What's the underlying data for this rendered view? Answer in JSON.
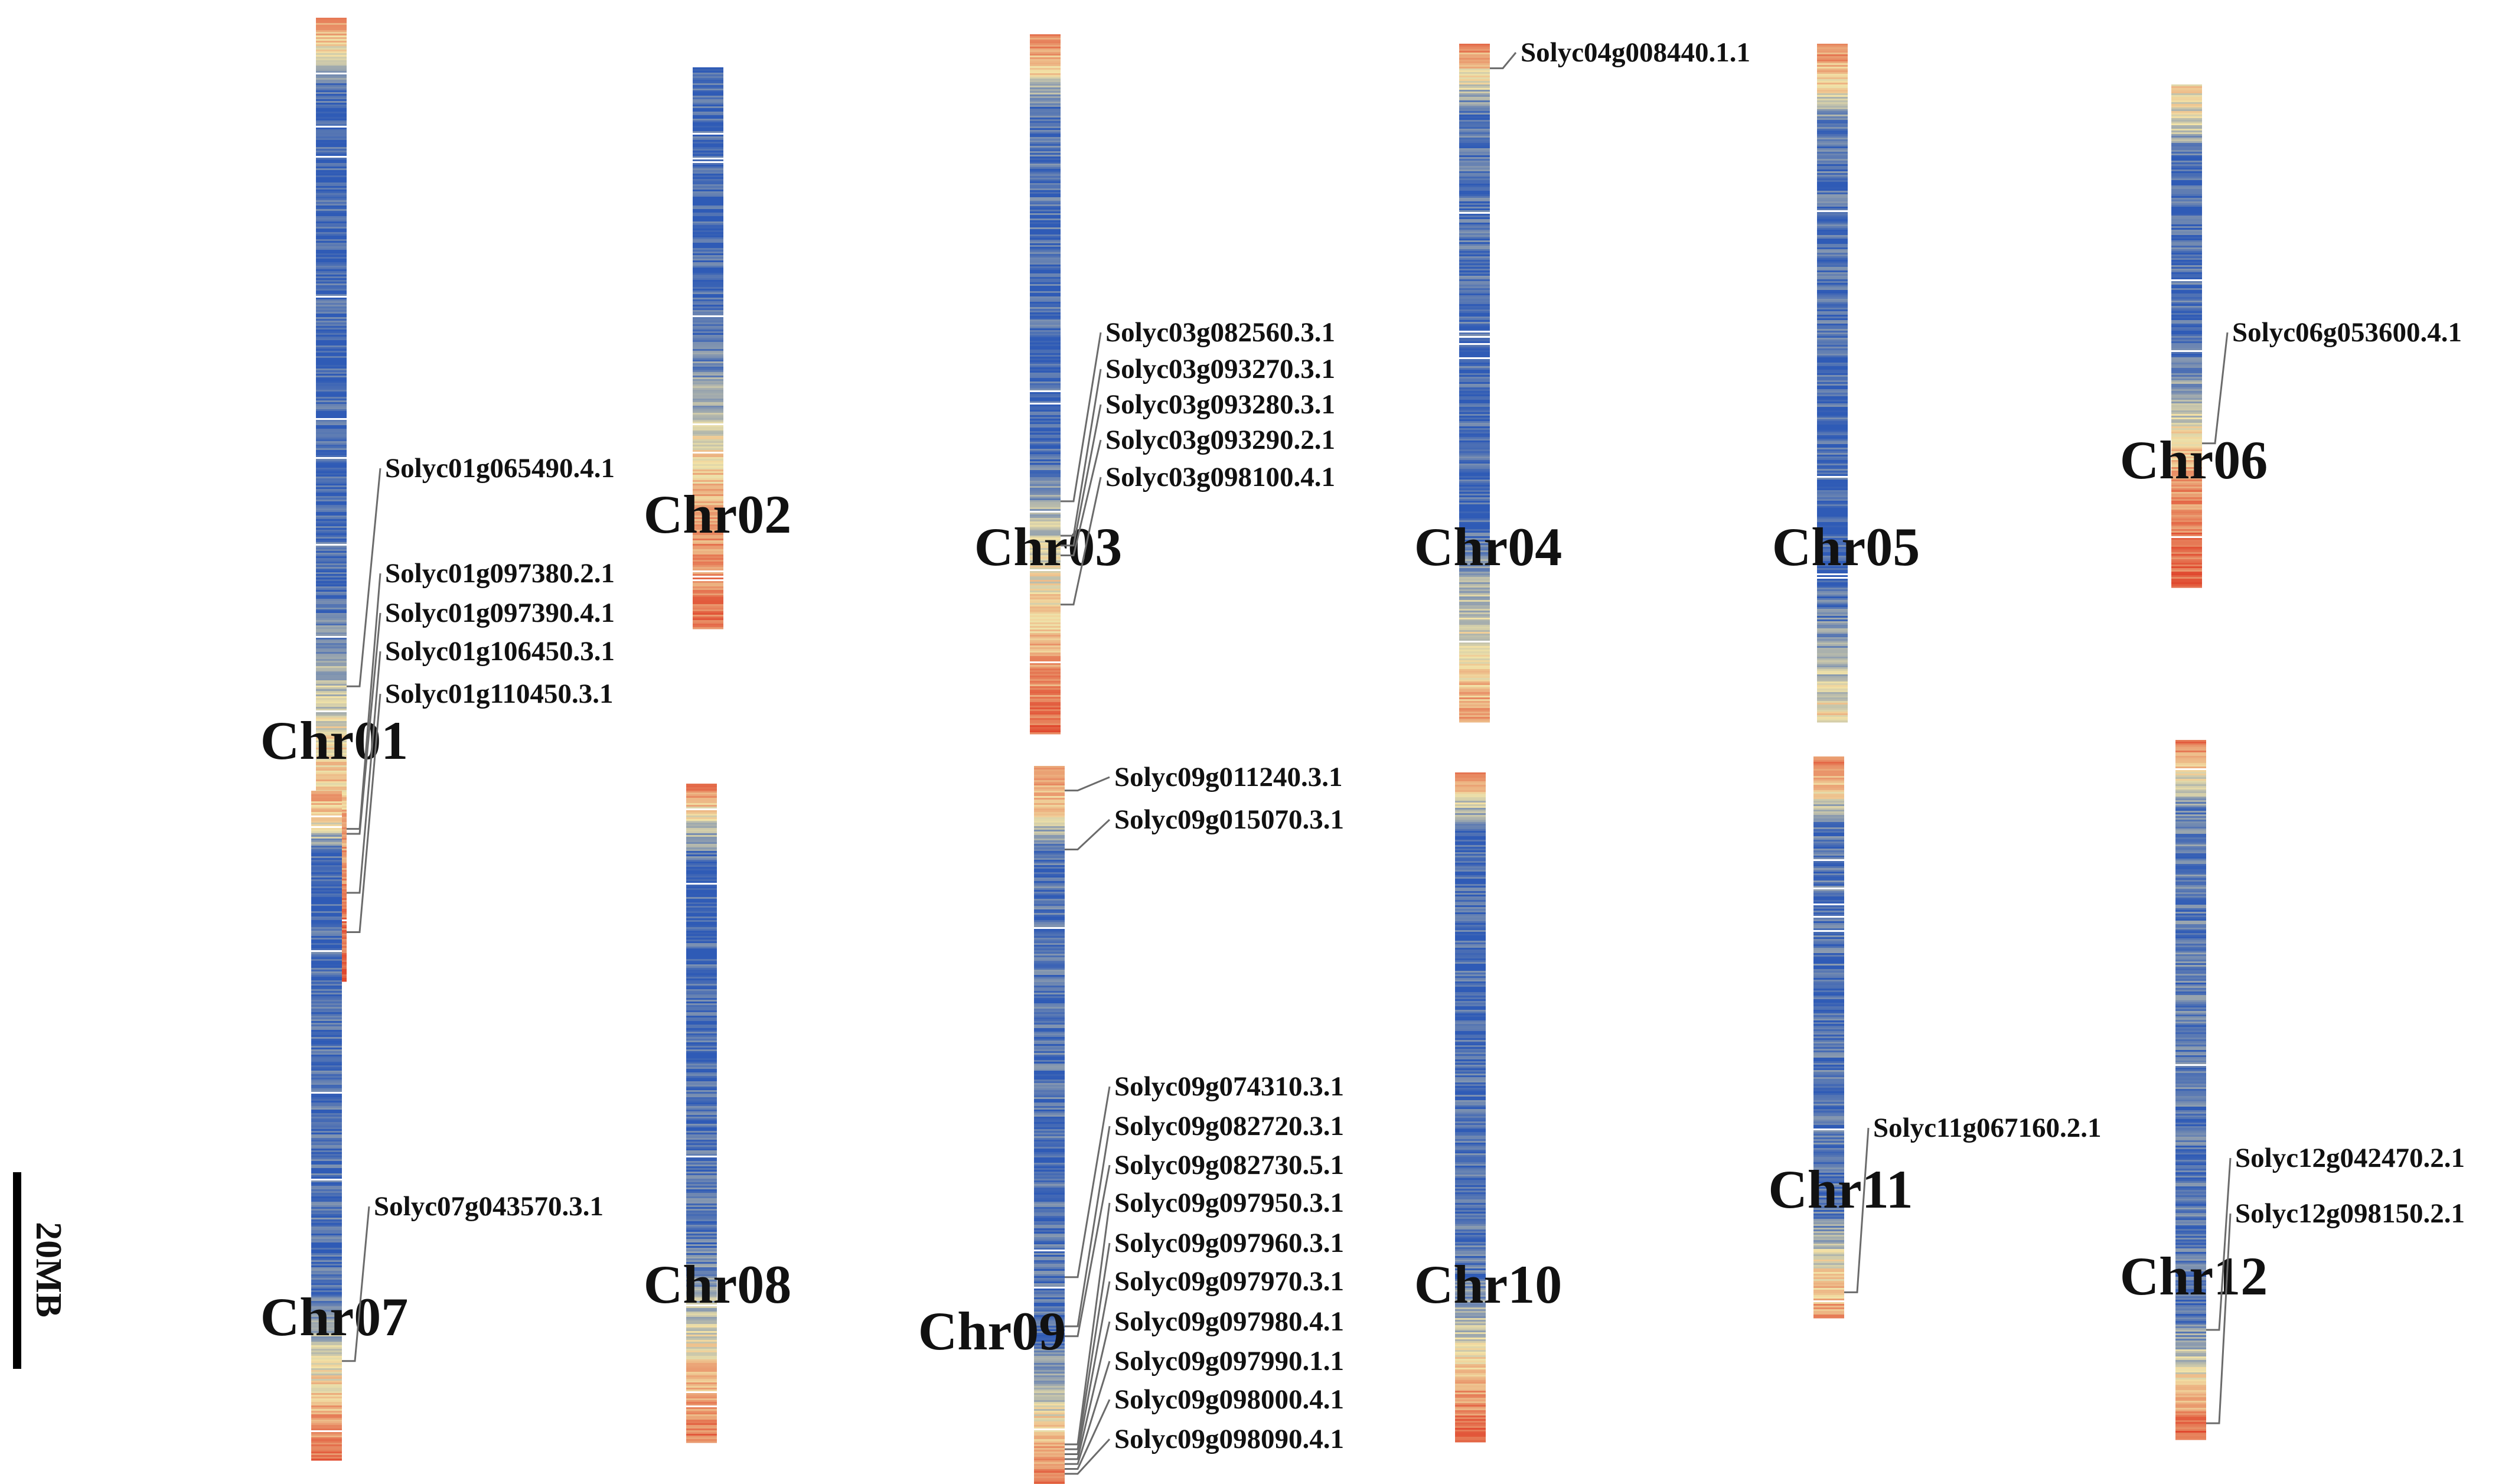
{
  "figure": {
    "scale_bar": {
      "label": "20MB",
      "length_mb": 20
    },
    "density_colors": {
      "low": "#2f5bb6",
      "mid": "#f2e3a8",
      "high": "#e0492f"
    },
    "chromosomes": [
      {
        "id": "chr01",
        "label": "Chr01",
        "length_mb": 98,
        "density_profile": [
          [
            0,
            0.8
          ],
          [
            0.03,
            0.5
          ],
          [
            0.08,
            0.05
          ],
          [
            0.6,
            0.05
          ],
          [
            0.7,
            0.4
          ],
          [
            0.8,
            0.6
          ],
          [
            0.9,
            0.8
          ],
          [
            1,
            0.95
          ]
        ],
        "genes": [
          {
            "name": "Solyc01g065490.4.1",
            "pos_mb": 68.0
          },
          {
            "name": "Solyc01g097380.2.1",
            "pos_mb": 82.5
          },
          {
            "name": "Solyc01g097390.4.1",
            "pos_mb": 83.0
          },
          {
            "name": "Solyc01g106450.3.1",
            "pos_mb": 89.0
          },
          {
            "name": "Solyc01g110450.3.1",
            "pos_mb": 93.0
          }
        ]
      },
      {
        "id": "chr02",
        "label": "Chr02",
        "length_mb": 57,
        "density_profile": [
          [
            0,
            0.05
          ],
          [
            0.45,
            0.05
          ],
          [
            0.6,
            0.3
          ],
          [
            0.7,
            0.55
          ],
          [
            0.8,
            0.7
          ],
          [
            1,
            0.85
          ]
        ],
        "genes": []
      },
      {
        "id": "chr03",
        "label": "Chr03",
        "length_mb": 71,
        "density_profile": [
          [
            0,
            0.8
          ],
          [
            0.05,
            0.6
          ],
          [
            0.1,
            0.1
          ],
          [
            0.6,
            0.05
          ],
          [
            0.72,
            0.4
          ],
          [
            0.85,
            0.6
          ],
          [
            1,
            0.9
          ]
        ],
        "genes": [
          {
            "name": "Solyc03g082560.3.1",
            "pos_mb": 47.5
          },
          {
            "name": "Solyc03g093270.3.1",
            "pos_mb": 51.0
          },
          {
            "name": "Solyc03g093280.3.1",
            "pos_mb": 52.0
          },
          {
            "name": "Solyc03g093290.2.1",
            "pos_mb": 53.0
          },
          {
            "name": "Solyc03g098100.4.1",
            "pos_mb": 58.0
          }
        ]
      },
      {
        "id": "chr04",
        "label": "Chr04",
        "length_mb": 69,
        "density_profile": [
          [
            0,
            0.8
          ],
          [
            0.04,
            0.55
          ],
          [
            0.1,
            0.1
          ],
          [
            0.7,
            0.05
          ],
          [
            0.8,
            0.3
          ],
          [
            0.92,
            0.55
          ],
          [
            1,
            0.75
          ]
        ],
        "genes": [
          {
            "name": "Solyc04g008440.1.1",
            "pos_mb": 2.5
          }
        ]
      },
      {
        "id": "chr05",
        "label": "Chr05",
        "length_mb": 69,
        "density_profile": [
          [
            0,
            0.8
          ],
          [
            0.06,
            0.55
          ],
          [
            0.12,
            0.1
          ],
          [
            0.8,
            0.05
          ],
          [
            0.9,
            0.3
          ],
          [
            1,
            0.55
          ]
        ],
        "genes": []
      },
      {
        "id": "chr06",
        "label": "Chr06",
        "length_mb": 51,
        "density_profile": [
          [
            0,
            0.55
          ],
          [
            0.08,
            0.4
          ],
          [
            0.15,
            0.05
          ],
          [
            0.55,
            0.1
          ],
          [
            0.65,
            0.4
          ],
          [
            0.8,
            0.75
          ],
          [
            1,
            0.9
          ]
        ],
        "genes": [
          {
            "name": "Solyc06g053600.4.1",
            "pos_mb": 36.5
          }
        ]
      },
      {
        "id": "chr07",
        "label": "Chr07",
        "length_mb": 68,
        "density_profile": [
          [
            0,
            0.75
          ],
          [
            0.05,
            0.45
          ],
          [
            0.1,
            0.05
          ],
          [
            0.75,
            0.1
          ],
          [
            0.87,
            0.5
          ],
          [
            0.95,
            0.75
          ],
          [
            1,
            0.85
          ]
        ],
        "genes": [
          {
            "name": "Solyc07g043570.3.1",
            "pos_mb": 58.0
          }
        ]
      },
      {
        "id": "chr08",
        "label": "Chr08",
        "length_mb": 67,
        "density_profile": [
          [
            0,
            0.8
          ],
          [
            0.05,
            0.45
          ],
          [
            0.12,
            0.05
          ],
          [
            0.7,
            0.1
          ],
          [
            0.85,
            0.5
          ],
          [
            0.95,
            0.75
          ],
          [
            1,
            0.85
          ]
        ],
        "genes": []
      },
      {
        "id": "chr09",
        "label": "Chr09",
        "length_mb": 73,
        "density_profile": [
          [
            0,
            0.8
          ],
          [
            0.06,
            0.55
          ],
          [
            0.12,
            0.1
          ],
          [
            0.8,
            0.1
          ],
          [
            0.88,
            0.4
          ],
          [
            0.95,
            0.7
          ],
          [
            1,
            0.85
          ]
        ],
        "genes": [
          {
            "name": "Solyc09g011240.3.1",
            "pos_mb": 2.5
          },
          {
            "name": "Solyc09g015070.3.1",
            "pos_mb": 8.5
          },
          {
            "name": "Solyc09g074310.3.1",
            "pos_mb": 52.0
          },
          {
            "name": "Solyc09g082720.3.1",
            "pos_mb": 57.0
          },
          {
            "name": "Solyc09g082730.5.1",
            "pos_mb": 58.0
          },
          {
            "name": "Solyc09g097950.3.1",
            "pos_mb": 69.0
          },
          {
            "name": "Solyc09g097960.3.1",
            "pos_mb": 69.5
          },
          {
            "name": "Solyc09g097970.3.1",
            "pos_mb": 70.0
          },
          {
            "name": "Solyc09g097980.4.1",
            "pos_mb": 70.5
          },
          {
            "name": "Solyc09g097990.1.1",
            "pos_mb": 71.0
          },
          {
            "name": "Solyc09g098000.4.1",
            "pos_mb": 71.5
          },
          {
            "name": "Solyc09g098090.4.1",
            "pos_mb": 72.0
          }
        ]
      },
      {
        "id": "chr10",
        "label": "Chr10",
        "length_mb": 68,
        "density_profile": [
          [
            0,
            0.75
          ],
          [
            0.05,
            0.35
          ],
          [
            0.1,
            0.05
          ],
          [
            0.75,
            0.1
          ],
          [
            0.88,
            0.55
          ],
          [
            1,
            0.95
          ]
        ],
        "genes": []
      },
      {
        "id": "chr11",
        "label": "Chr11",
        "length_mb": 57,
        "density_profile": [
          [
            0,
            0.8
          ],
          [
            0.06,
            0.55
          ],
          [
            0.12,
            0.1
          ],
          [
            0.8,
            0.1
          ],
          [
            0.9,
            0.45
          ],
          [
            1,
            0.75
          ]
        ],
        "genes": [
          {
            "name": "Solyc11g067160.2.1",
            "pos_mb": 54.5
          }
        ]
      },
      {
        "id": "chr12",
        "label": "Chr12",
        "length_mb": 71,
        "density_profile": [
          [
            0,
            0.9
          ],
          [
            0.04,
            0.55
          ],
          [
            0.1,
            0.15
          ],
          [
            0.82,
            0.1
          ],
          [
            0.9,
            0.45
          ],
          [
            0.95,
            0.7
          ],
          [
            1,
            0.95
          ]
        ],
        "genes": [
          {
            "name": "Solyc12g042470.2.1",
            "pos_mb": 60.0
          },
          {
            "name": "Solyc12g098150.2.1",
            "pos_mb": 69.5
          }
        ]
      }
    ]
  }
}
